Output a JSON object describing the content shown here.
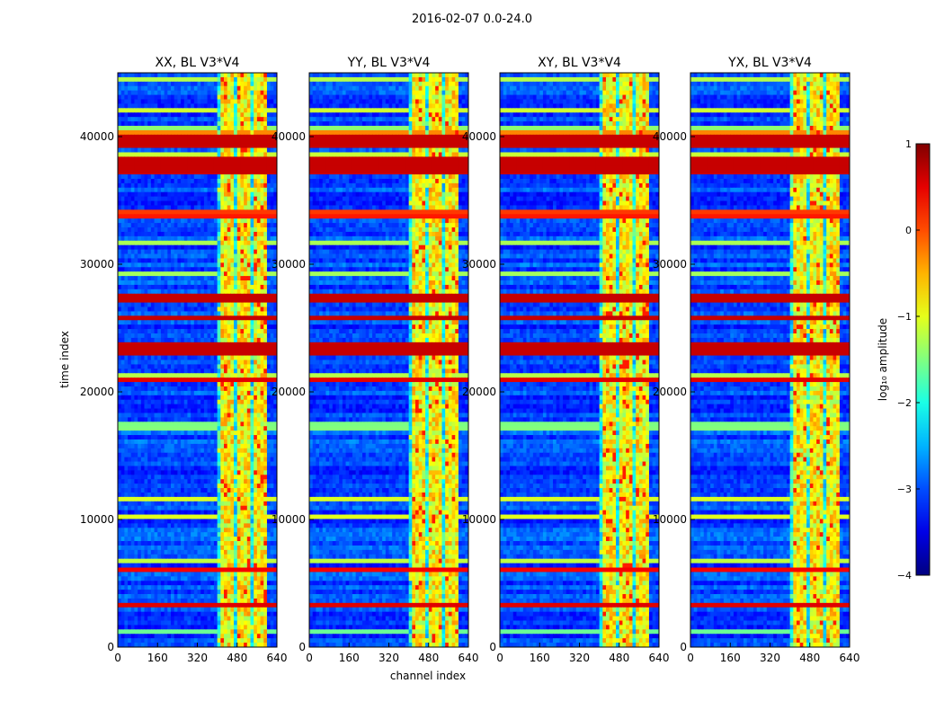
{
  "chart_data": {
    "type": "heatmap",
    "title": "2016-02-07 0.0-24.0",
    "xlabel": "channel index",
    "ylabel": "time index",
    "xlim": [
      0,
      640
    ],
    "ylim": [
      0,
      45000
    ],
    "xticks": [
      "0",
      "160",
      "320",
      "480",
      "640"
    ],
    "yticks": [
      "0",
      "10000",
      "20000",
      "30000",
      "40000"
    ],
    "panels": [
      {
        "title": "XX, BL V3*V4"
      },
      {
        "title": "YY, BL V3*V4"
      },
      {
        "title": "XY, BL V3*V4"
      },
      {
        "title": "YX, BL V3*V4"
      }
    ],
    "colorbar": {
      "label": "log₁₀ amplitude",
      "vmin": -4,
      "vmax": 1,
      "ticks": [
        "1",
        "0",
        "−1",
        "−2",
        "−3",
        "−4"
      ],
      "colormap": "jet"
    },
    "rfi_channel_band": [
      405,
      600
    ],
    "bright_bands": [
      {
        "start": 37000,
        "end": 38500
      },
      {
        "start": 27100,
        "end": 27800
      },
      {
        "start": 25500,
        "end": 25900
      },
      {
        "start": 22900,
        "end": 23800
      },
      {
        "start": 39200,
        "end": 40400
      }
    ]
  }
}
